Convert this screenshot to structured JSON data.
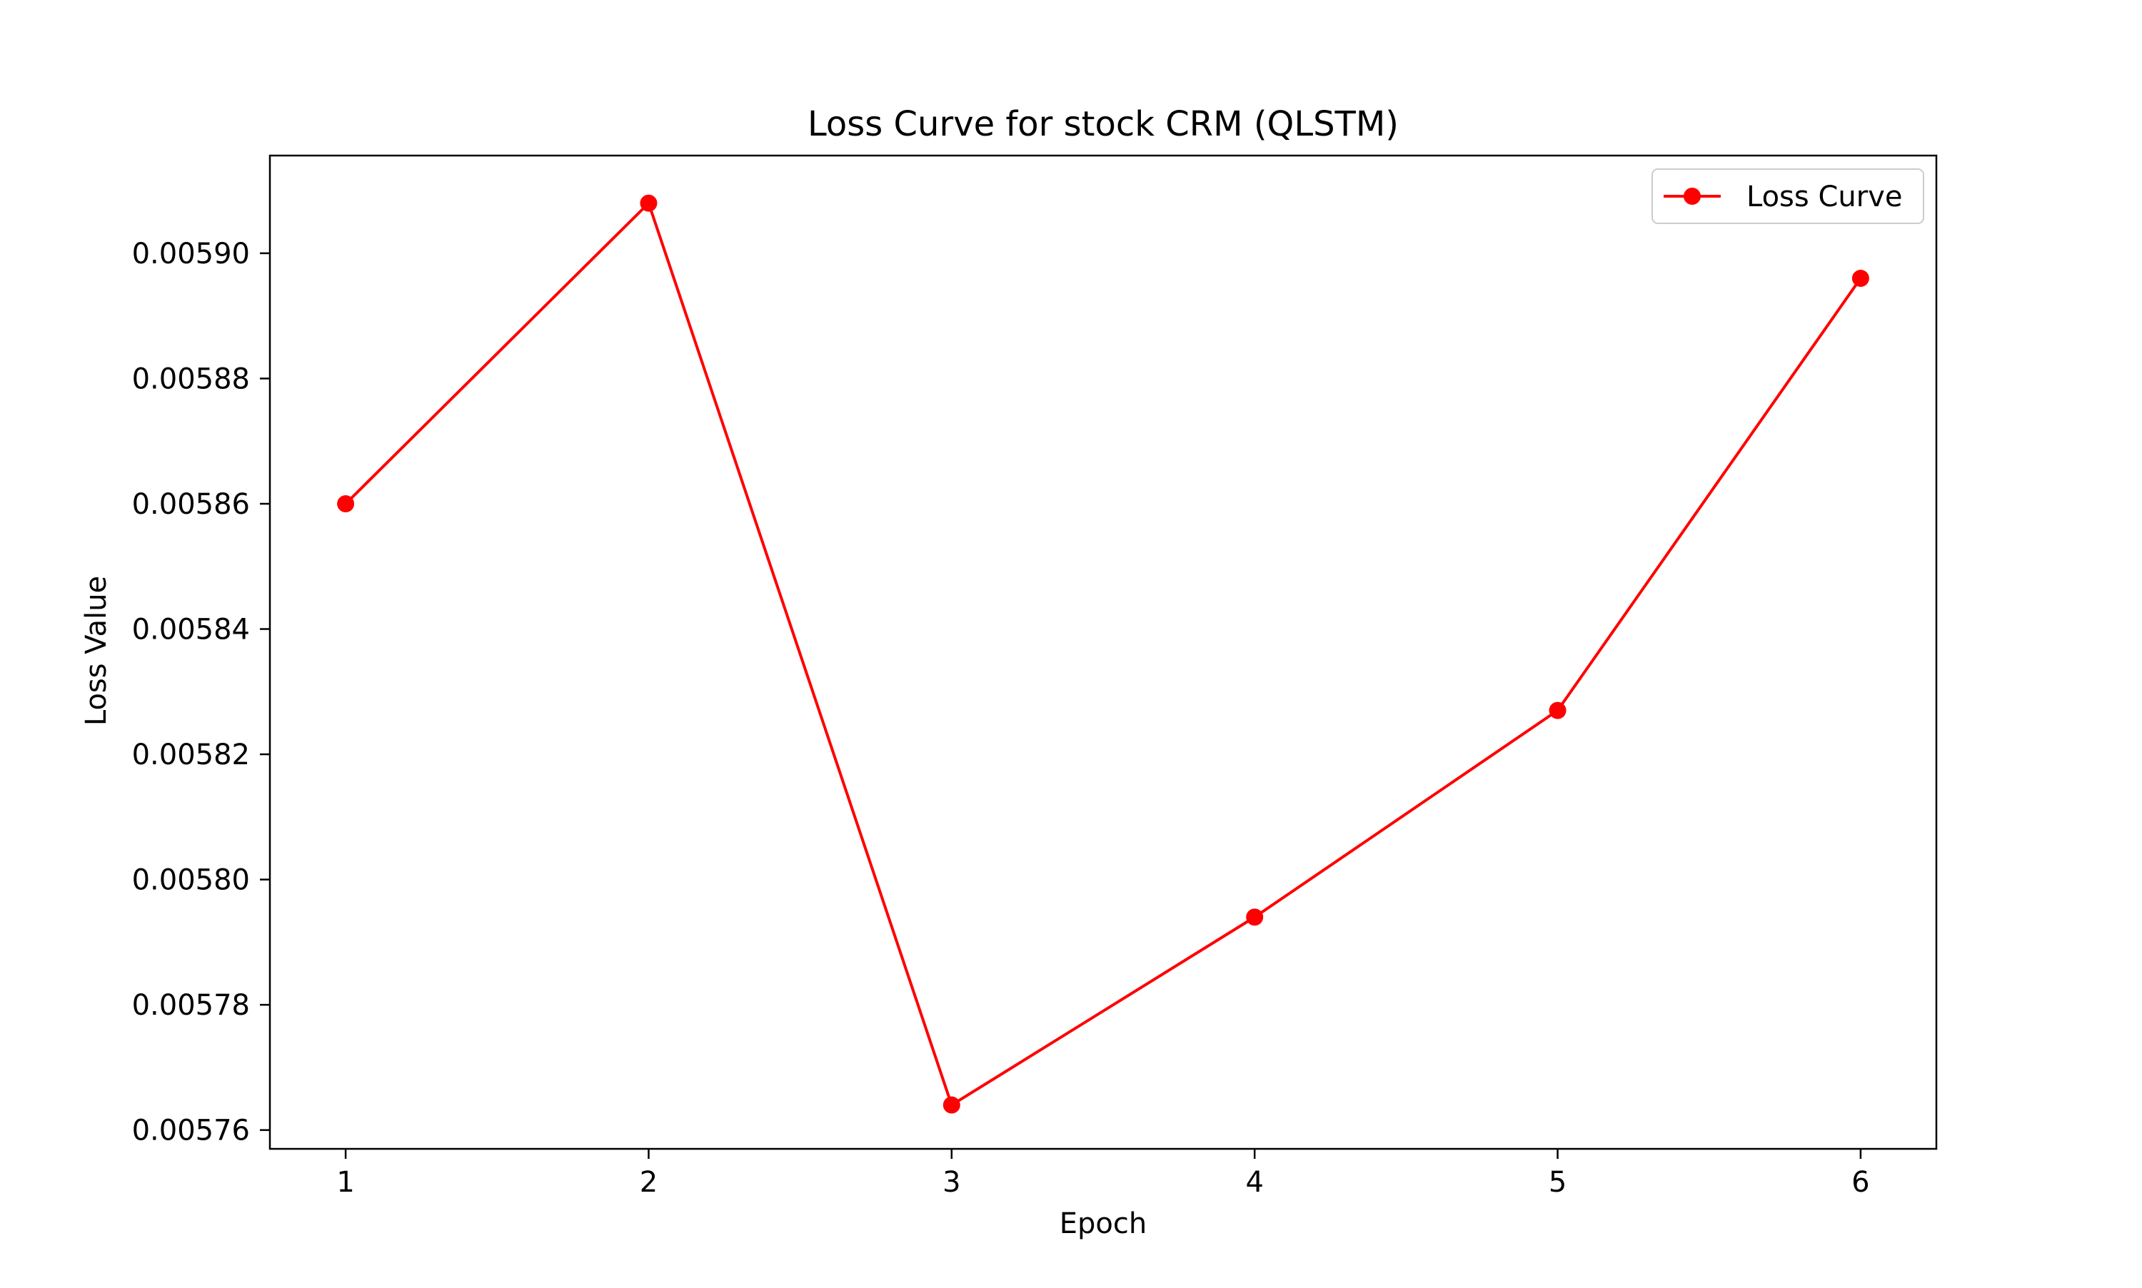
{
  "chart_data": {
    "type": "line",
    "title": "Loss Curve for stock CRM (QLSTM)",
    "xlabel": "Epoch",
    "ylabel": "Loss Value",
    "x": [
      1,
      2,
      3,
      4,
      5,
      6
    ],
    "series": [
      {
        "name": "Loss Curve",
        "color": "#ff0000",
        "marker": "circle",
        "values": [
          0.00586,
          0.005908,
          0.005764,
          0.005794,
          0.005827,
          0.005896
        ]
      }
    ],
    "xlim": [
      0.75,
      6.25
    ],
    "ylim": [
      0.005757,
      0.0059156
    ],
    "xticks": [
      1,
      2,
      3,
      4,
      5,
      6
    ],
    "xtick_labels": [
      "1",
      "2",
      "3",
      "4",
      "5",
      "6"
    ],
    "yticks": [
      0.00576,
      0.00578,
      0.0058,
      0.00582,
      0.00584,
      0.00586,
      0.00588,
      0.0059
    ],
    "ytick_labels": [
      "0.00576",
      "0.00578",
      "0.00580",
      "0.00582",
      "0.00584",
      "0.00586",
      "0.00588",
      "0.00590"
    ],
    "grid": false,
    "legend_position": "top-right"
  }
}
